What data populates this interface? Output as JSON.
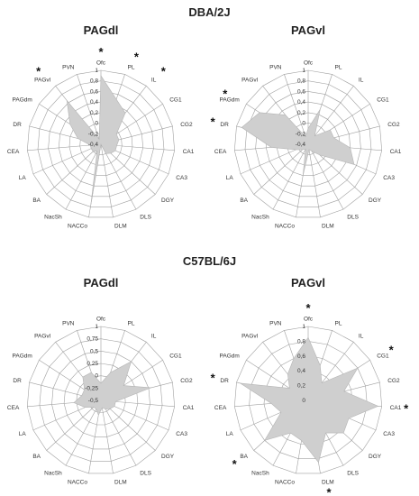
{
  "groups": [
    "DBA/2J",
    "C57BL/6J"
  ],
  "chart_data": [
    {
      "type": "radar",
      "group": "DBA/2J",
      "title": "PAGdl",
      "categories": [
        "Ofc",
        "PL",
        "IL",
        "CG1",
        "CG2",
        "CA1",
        "CA3",
        "DGY",
        "DLS",
        "DLM",
        "NACCo",
        "NacSh",
        "BA",
        "LA",
        "CEA",
        "DR",
        "PAGdm",
        "PAGvl",
        "PVN"
      ],
      "values": [
        0.9,
        0.5,
        0.35,
        -0.05,
        -0.05,
        -0.1,
        -0.1,
        -0.15,
        -0.2,
        -0.4,
        0.75,
        -0.25,
        -0.2,
        -0.2,
        -0.2,
        0.05,
        0.3,
        0.65,
        -0.3
      ],
      "rlim": [
        -0.4,
        1
      ],
      "ticks": [
        "-0,4",
        "-0,2",
        "0",
        "0,2",
        "0,4",
        "0,6",
        "0,8",
        "1"
      ],
      "significant": [
        "Ofc",
        "PL",
        "IL",
        "PAGvl"
      ]
    },
    {
      "type": "radar",
      "group": "DBA/2J",
      "title": "PAGvl",
      "categories": [
        "Ofc",
        "PL",
        "IL",
        "CG1",
        "CG2",
        "CA1",
        "CA3",
        "DGY",
        "DLS",
        "DLM",
        "NACCo",
        "NacSh",
        "BA",
        "LA",
        "CEA",
        "DR",
        "PAGdm",
        "PAGvl",
        "PVN"
      ],
      "values": [
        -0.1,
        0.3,
        -0.2,
        0.1,
        0.1,
        0.4,
        0.55,
        -0.1,
        -0.25,
        -0.3,
        0.2,
        -0.3,
        -0.25,
        -0.15,
        0.3,
        0.9,
        0.7,
        0.3,
        -0.25
      ],
      "rlim": [
        -0.4,
        1
      ],
      "ticks": [
        "-0,4",
        "-0,2",
        "0",
        "0,2",
        "0,4",
        "0,6",
        "0,8",
        "1"
      ],
      "significant": [
        "PAGdm",
        "PAGdl",
        "DR"
      ]
    },
    {
      "type": "radar",
      "group": "C57BL/6J",
      "title": "PAGdl",
      "categories": [
        "Ofc",
        "PL",
        "IL",
        "CG1",
        "CG2",
        "CA1",
        "CA3",
        "DGY",
        "DLS",
        "DLM",
        "NACCo",
        "NacSh",
        "BA",
        "LA",
        "CEA",
        "DR",
        "PAGdm",
        "PAGvl",
        "PVN"
      ],
      "values": [
        -0.15,
        0.1,
        0.5,
        0.05,
        0.55,
        -0.2,
        -0.2,
        -0.25,
        -0.3,
        -0.35,
        -0.2,
        -0.3,
        -0.3,
        -0.15,
        0.05,
        -0.1,
        -0.1,
        0.1,
        0.1
      ],
      "rlim": [
        -0.5,
        1
      ],
      "ticks": [
        "-0,5",
        "-0,25",
        "0",
        "0,25",
        "0,5",
        "0,75",
        "1"
      ],
      "significant": []
    },
    {
      "type": "radar",
      "group": "C57BL/6J",
      "title": "PAGvl",
      "categories": [
        "Ofc",
        "PL",
        "IL",
        "CG1",
        "CG2",
        "CA1",
        "CA3",
        "DGY",
        "DLS",
        "DLM",
        "NACCo",
        "NacSh",
        "BA",
        "LA",
        "CEA",
        "DR",
        "PAGdm",
        "PAGvl",
        "PVN"
      ],
      "values": [
        0.85,
        0.5,
        0.3,
        0.8,
        0.5,
        0.95,
        0.6,
        0.65,
        0.5,
        0.85,
        0.55,
        0.5,
        0.8,
        0.4,
        0.5,
        0.95,
        0.3,
        0.45,
        0.6
      ],
      "rlim": [
        0,
        1
      ],
      "ticks": [
        "0",
        "0,2",
        "0,4",
        "0,6",
        "0,8",
        "1"
      ],
      "significant": [
        "Ofc",
        "CG1",
        "CA1",
        "DR",
        "BA",
        "DLM"
      ]
    }
  ],
  "palette": {
    "fill": "#cfcfcf",
    "grid": "#a0a0a0",
    "text": "#333333"
  }
}
